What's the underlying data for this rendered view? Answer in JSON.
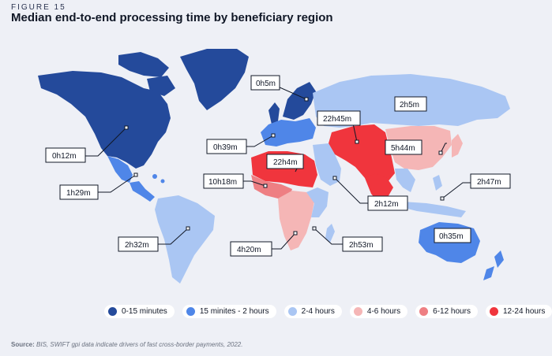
{
  "figure_label": "FIGURE 15",
  "title": "Median end-to-end processing time by beneficiary region",
  "legend": [
    {
      "label": "0-15 minutes",
      "color": "#244a9b"
    },
    {
      "label": "15 minites - 2 hours",
      "color": "#4f86e8"
    },
    {
      "label": "2-4 hours",
      "color": "#aac6f3"
    },
    {
      "label": "4-6 hours",
      "color": "#f5b6b6"
    },
    {
      "label": "6-12 hours",
      "color": "#ee7f83"
    },
    {
      "label": "12-24 hours",
      "color": "#f0353d"
    }
  ],
  "callouts": {
    "north_america": "0h12m",
    "central_america": "1h29m",
    "south_america": "2h32m",
    "north_europe": "0h5m",
    "west_europe": "0h39m",
    "north_africa": "22h4m",
    "west_africa": "10h18m",
    "southern_africa": "4h20m",
    "east_africa": "2h53m",
    "middle_east": "2h12m",
    "central_asia": "22h45m",
    "east_asia": "5h44m",
    "north_asia": "2h5m",
    "southeast_asia": "2h47m",
    "oceania": "0h35m"
  },
  "source_bold": "Source:",
  "source_text": " BIS, SWIFT gpi data indicate drivers of fast cross-border payments, 2022."
}
